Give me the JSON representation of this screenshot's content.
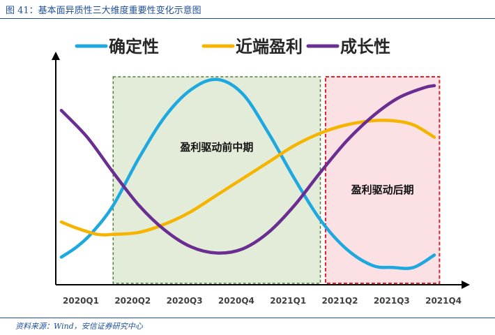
{
  "caption": {
    "title": "图 41：基本面异质性三大维度重要性变化示意图",
    "source": "资料来源：Wind，安信证券研究中心"
  },
  "chart_data": {
    "type": "line",
    "title": "",
    "xlabel": "",
    "ylabel": "",
    "categories": [
      "2020Q1",
      "2020Q2",
      "2020Q3",
      "2020Q4",
      "2021Q1",
      "2021Q2",
      "2021Q3",
      "2021Q4"
    ],
    "ylim": [
      0,
      100
    ],
    "series": [
      {
        "name": "确定性",
        "color": "#1ea8e0",
        "x": [
          0.0,
          0.3,
          0.6,
          1.0,
          1.5,
          2.0,
          2.5,
          3.0,
          3.5,
          4.0,
          4.5,
          5.0,
          5.5,
          6.0,
          6.4,
          6.8,
          7.2
        ],
        "values": [
          10,
          15,
          22,
          35,
          58,
          78,
          91,
          96,
          89,
          70,
          48,
          28,
          14,
          6,
          5,
          5,
          11
        ]
      },
      {
        "name": "近端盈利",
        "color": "#f5b400",
        "x": [
          0.0,
          0.3,
          0.7,
          1.0,
          1.5,
          2.0,
          2.5,
          3.0,
          3.5,
          4.0,
          4.5,
          5.0,
          5.5,
          6.0,
          6.4,
          6.8,
          7.2
        ],
        "values": [
          27,
          24,
          21,
          21,
          22,
          26,
          32,
          40,
          48,
          56,
          64,
          70,
          74,
          76,
          76,
          74,
          68
        ]
      },
      {
        "name": "成长性",
        "color": "#6a2d91",
        "x": [
          0.0,
          0.5,
          1.0,
          1.5,
          2.0,
          2.5,
          3.0,
          3.5,
          4.0,
          4.5,
          5.0,
          5.5,
          6.0,
          6.5,
          7.0,
          7.2
        ],
        "values": [
          81,
          68,
          51,
          35,
          23,
          15,
          12,
          14,
          22,
          35,
          51,
          66,
          78,
          87,
          92,
          93
        ]
      }
    ],
    "regions": [
      {
        "label": "盈利驱动前中期",
        "x_start": 1.0,
        "x_end": 5.0,
        "fill": "#e2ecd9",
        "stroke": "#507e32"
      },
      {
        "label": "盈利驱动后期",
        "x_start": 5.1,
        "x_end": 7.3,
        "fill": "#fbe1e3",
        "stroke": "#e0202a"
      }
    ],
    "legend_position": "top"
  }
}
